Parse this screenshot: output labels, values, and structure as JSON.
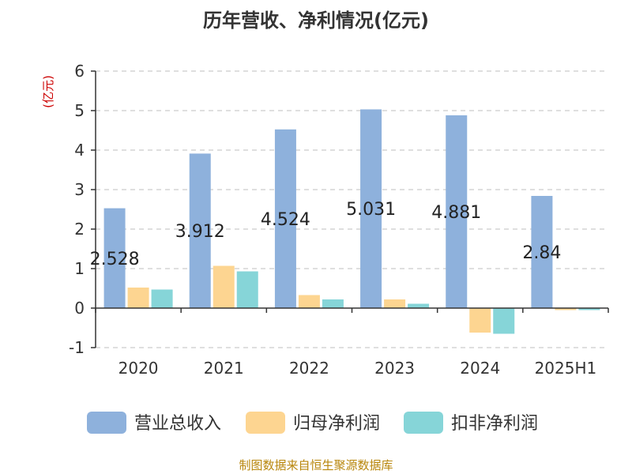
{
  "chart_data": {
    "type": "bar",
    "title": "历年营收、净利情况(亿元)",
    "ylabel": "(亿元)",
    "categories": [
      "2020",
      "2021",
      "2022",
      "2023",
      "2024",
      "2025H1"
    ],
    "ylim": [
      -1,
      6
    ],
    "yticks": [
      6,
      5,
      4,
      3,
      2,
      1,
      0,
      -1
    ],
    "grid": true,
    "legend_position": "bottom",
    "series": [
      {
        "name": "营业总收入",
        "values": [
          2.528,
          3.912,
          4.524,
          5.031,
          4.881,
          2.84
        ],
        "color": "#8eb1dc"
      },
      {
        "name": "归母净利润",
        "values": [
          0.52,
          1.07,
          0.33,
          0.22,
          -0.62,
          -0.05
        ],
        "color": "#fdd591"
      },
      {
        "name": "扣非净利润",
        "values": [
          0.47,
          0.93,
          0.22,
          0.11,
          -0.65,
          -0.05
        ],
        "color": "#86d5d8"
      }
    ],
    "data_labels": [
      "2.528",
      "3.912",
      "4.524",
      "5.031",
      "4.881",
      "2.84"
    ]
  },
  "footer": {
    "source": "制图数据来自恒生聚源数据库"
  },
  "colors": {
    "unit": "#cc0000",
    "source": "#b8860b",
    "grid": "#cccccc",
    "axis": "#333333"
  }
}
